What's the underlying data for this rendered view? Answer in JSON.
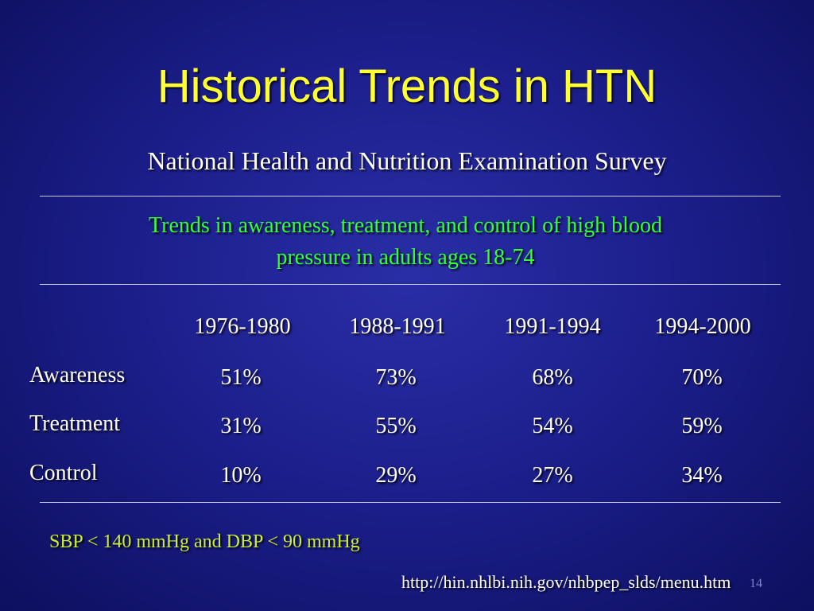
{
  "title": "Historical Trends in HTN",
  "subtitle": "National Health and Nutrition Examination Survey",
  "trend_caption_line1": "Trends in awareness, treatment, and control of high blood",
  "trend_caption_line2": "pressure in adults ages 18-74",
  "table": {
    "columns": [
      "1976-1980",
      "1988-1991",
      "1991-1994",
      "1994-2000"
    ],
    "rows": [
      {
        "label": "Awareness",
        "values": [
          "51%",
          "73%",
          "68%",
          "70%"
        ]
      },
      {
        "label": "Treatment",
        "values": [
          "31%",
          "55%",
          "54%",
          "59%"
        ]
      },
      {
        "label": "Control",
        "values": [
          "10%",
          "29%",
          "27%",
          "34%"
        ]
      }
    ]
  },
  "footnote": "SBP < 140 mmHg and DBP < 90 mmHg",
  "source_url": "http://hin.nhlbi.nih.gov/nhbpep_slds/menu.htm",
  "page_number": "14",
  "colors": {
    "title": "#ffff33",
    "caption": "#33ff33",
    "footnote": "#ccee33",
    "background": "#1c1f8c"
  }
}
